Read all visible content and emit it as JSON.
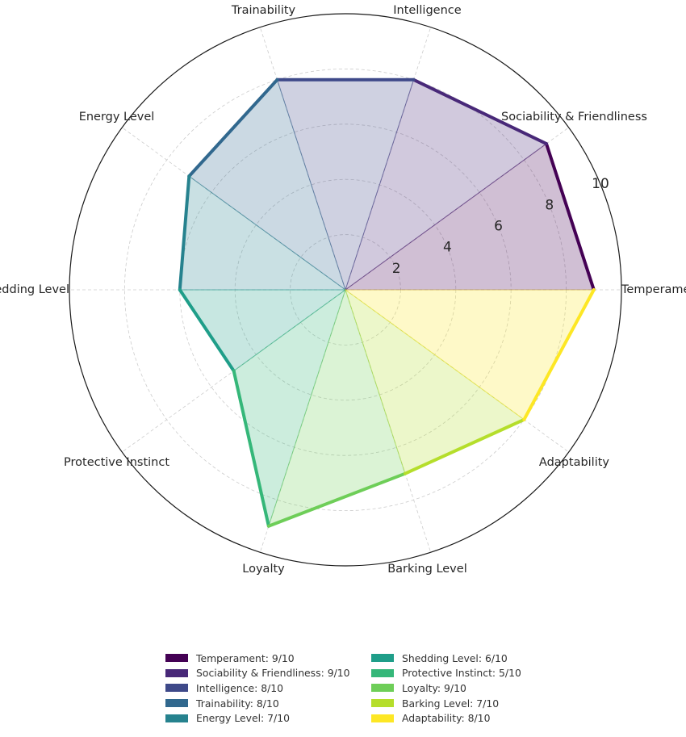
{
  "chart_data": {
    "type": "radar",
    "rmax": 10,
    "radial_ticks": [
      "2",
      "4",
      "6",
      "8",
      "10"
    ],
    "grid": true,
    "legend_position": "bottom",
    "categories": [
      "Temperament",
      "Sociability & Friendliness",
      "Intelligence",
      "Trainability",
      "Energy Level",
      "Shedding Level",
      "Protective Instinct",
      "Loyalty",
      "Barking Level",
      "Adaptability"
    ],
    "values": [
      9,
      9,
      8,
      8,
      7,
      6,
      5,
      9,
      7,
      8
    ],
    "colors": [
      "#440154",
      "#482878",
      "#3e4989",
      "#31688e",
      "#26828e",
      "#1f9e89",
      "#35b779",
      "#6ece58",
      "#b5de2b",
      "#fde725"
    ],
    "legend": [
      "Temperament: 9/10",
      "Sociability & Friendliness: 9/10",
      "Intelligence: 8/10",
      "Trainability: 8/10",
      "Energy Level: 7/10",
      "Shedding Level: 6/10",
      "Protective Instinct: 5/10",
      "Loyalty: 9/10",
      "Barking Level: 7/10",
      "Adaptability: 8/10"
    ]
  }
}
